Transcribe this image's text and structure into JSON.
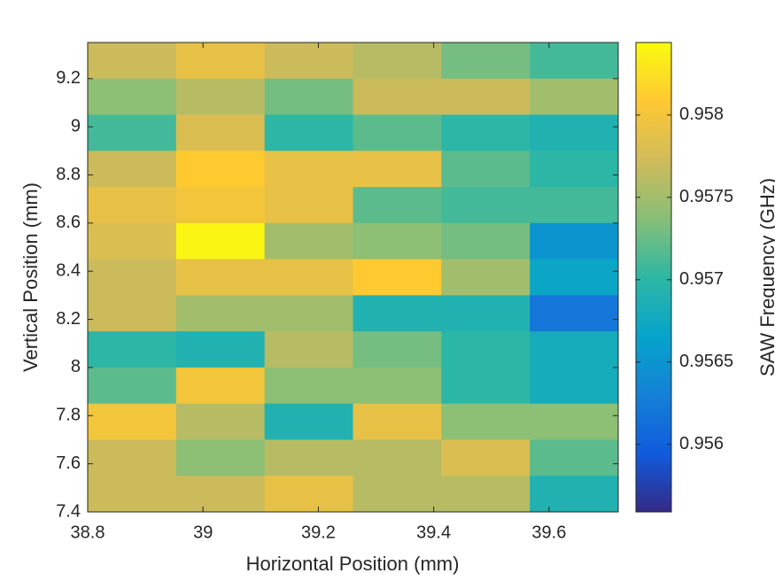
{
  "chart_data": {
    "type": "heatmap",
    "xlabel": "Horizontal Position (mm)",
    "ylabel": "Vertical Position (mm)",
    "colorbar_label": "SAW Frequency (GHz)",
    "xlim": [
      38.8,
      39.72
    ],
    "ylim": [
      7.4,
      9.35
    ],
    "xticks": [
      38.8,
      39,
      39.2,
      39.4,
      39.6
    ],
    "yticks": [
      7.4,
      7.6,
      7.8,
      8,
      8.2,
      8.4,
      8.6,
      8.8,
      9,
      9.2
    ],
    "clim": [
      0.95559,
      0.95844
    ],
    "cticks": [
      0.956,
      0.9565,
      0.957,
      0.9575,
      0.958
    ],
    "colormap": [
      "#352a87",
      "#0f5cdd",
      "#1481d6",
      "#06a4ca",
      "#2eb7a4",
      "#87bf77",
      "#d1bb59",
      "#fec832",
      "#f9fb0e"
    ],
    "z": [
      [
        0.9577,
        0.9579,
        0.9577,
        0.9576,
        0.9573,
        0.9571
      ],
      [
        0.9574,
        0.9576,
        0.9573,
        0.9577,
        0.9577,
        0.9575
      ],
      [
        0.9571,
        0.9578,
        0.957,
        0.9572,
        0.957,
        0.9569
      ],
      [
        0.9577,
        0.9581,
        0.9579,
        0.9579,
        0.9572,
        0.957
      ],
      [
        0.9579,
        0.958,
        0.9579,
        0.9572,
        0.9571,
        0.9571
      ],
      [
        0.9578,
        0.9584,
        0.9575,
        0.9574,
        0.9573,
        0.9565
      ],
      [
        0.9577,
        0.9579,
        0.9579,
        0.9581,
        0.9575,
        0.9567
      ],
      [
        0.9577,
        0.9575,
        0.9575,
        0.9569,
        0.9569,
        0.9562
      ],
      [
        0.957,
        0.9569,
        0.9576,
        0.9573,
        0.957,
        0.9568
      ],
      [
        0.9572,
        0.958,
        0.9574,
        0.9574,
        0.957,
        0.9568
      ],
      [
        0.958,
        0.9576,
        0.9569,
        0.9579,
        0.9574,
        0.9574
      ],
      [
        0.9577,
        0.9574,
        0.9576,
        0.9576,
        0.9578,
        0.9572
      ],
      [
        0.9577,
        0.9577,
        0.9579,
        0.9576,
        0.9576,
        0.9569
      ]
    ]
  }
}
